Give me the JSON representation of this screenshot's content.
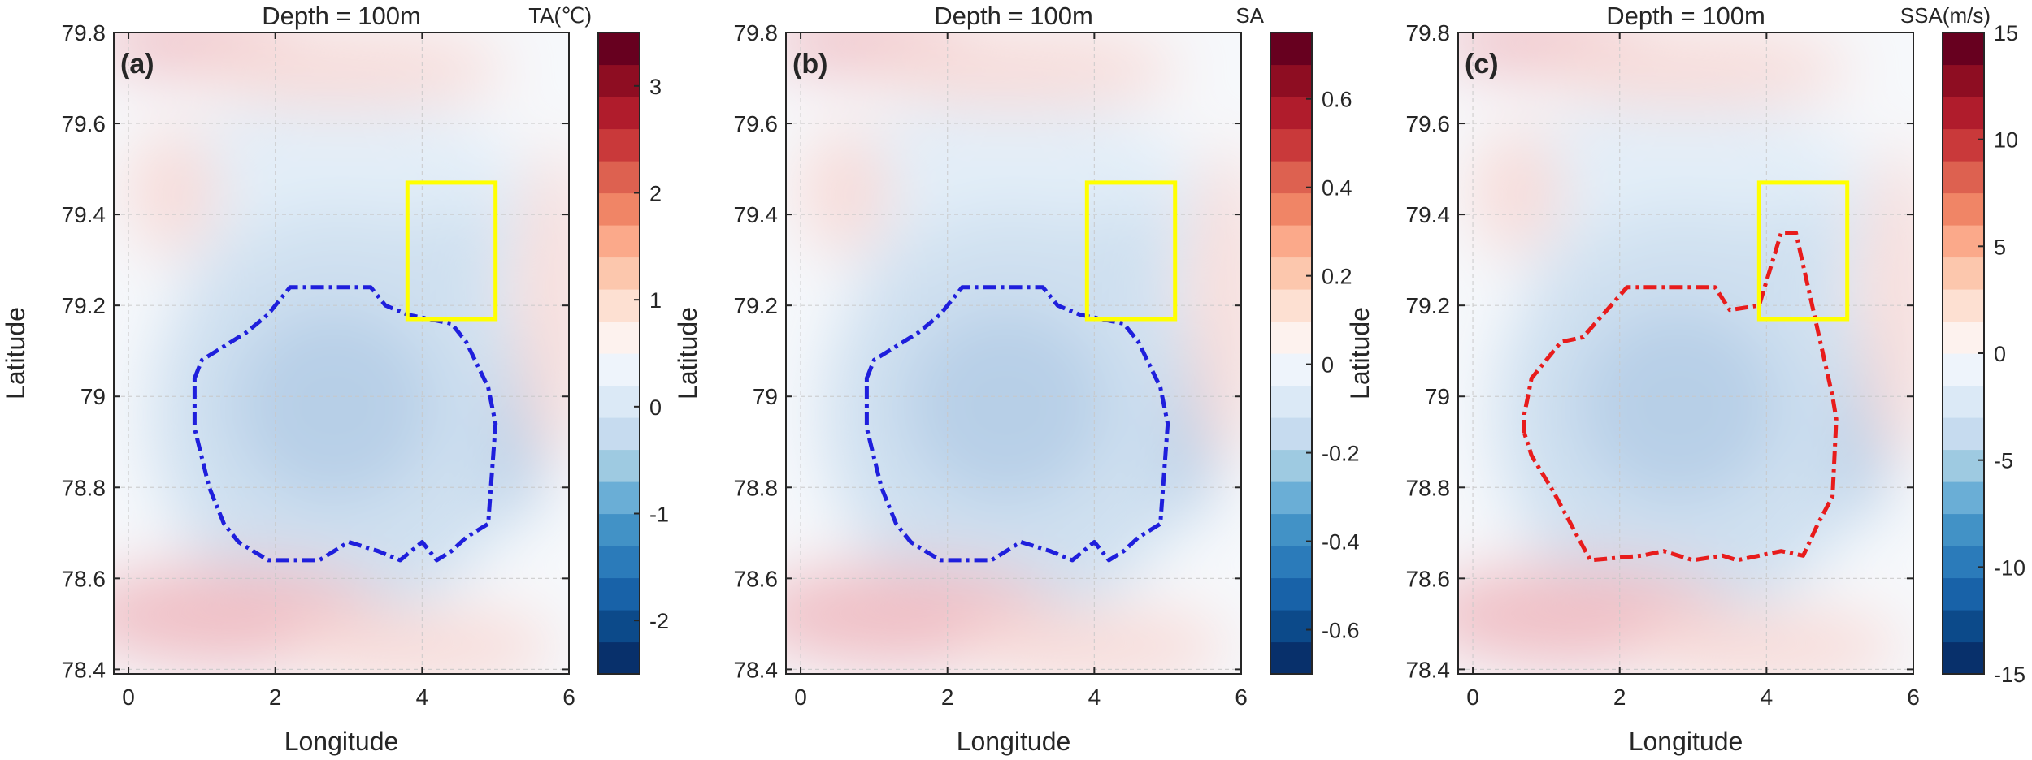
{
  "chart_data": [
    {
      "type": "heatmap",
      "panel_label": "(a)",
      "title": "Depth = 100m",
      "xlabel": "Longitude",
      "ylabel": "Latitude",
      "xlim": [
        -0.2,
        6
      ],
      "ylim": [
        78.39,
        79.8
      ],
      "xticks": [
        "0",
        "2",
        "4",
        "6"
      ],
      "yticks": [
        "78.4",
        "78.6",
        "78.8",
        "79",
        "79.2",
        "79.4",
        "79.6",
        "79.8"
      ],
      "grid": true,
      "colorbar": {
        "label": "TA(℃)",
        "range": [
          -2.5,
          3.5
        ],
        "ticks": [
          "-2",
          "-1",
          "0",
          "1",
          "2",
          "3"
        ],
        "tick_values": [
          -2,
          -1,
          0,
          1,
          2,
          3
        ]
      },
      "contour_color": "#1f1fdc",
      "contour": [
        [
          0.9,
          79.04
        ],
        [
          1.0,
          79.08
        ],
        [
          1.2,
          79.1
        ],
        [
          1.5,
          79.13
        ],
        [
          1.6,
          79.14
        ],
        [
          1.9,
          79.18
        ],
        [
          2.2,
          79.24
        ],
        [
          3.3,
          79.24
        ],
        [
          3.5,
          79.2
        ],
        [
          3.8,
          79.18
        ],
        [
          4.4,
          79.16
        ],
        [
          4.6,
          79.12
        ],
        [
          4.9,
          79.02
        ],
        [
          5.0,
          78.94
        ],
        [
          4.9,
          78.72
        ],
        [
          4.6,
          78.69
        ],
        [
          4.4,
          78.66
        ],
        [
          4.2,
          78.64
        ],
        [
          4.0,
          78.68
        ],
        [
          3.7,
          78.64
        ],
        [
          3.4,
          78.66
        ],
        [
          3.0,
          78.68
        ],
        [
          2.7,
          78.65
        ],
        [
          2.6,
          78.64
        ],
        [
          1.9,
          78.64
        ],
        [
          1.5,
          78.68
        ],
        [
          1.3,
          78.72
        ],
        [
          1.1,
          78.8
        ],
        [
          0.9,
          78.93
        ],
        [
          0.9,
          79.04
        ]
      ],
      "box": {
        "x": [
          3.8,
          5.0
        ],
        "y": [
          79.17,
          79.47
        ],
        "color": "#ffff00"
      }
    },
    {
      "type": "heatmap",
      "panel_label": "(b)",
      "title": "Depth = 100m",
      "xlabel": "Longitude",
      "ylabel": "Latitude",
      "xlim": [
        -0.2,
        6
      ],
      "ylim": [
        78.39,
        79.8
      ],
      "xticks": [
        "0",
        "2",
        "4",
        "6"
      ],
      "yticks": [
        "78.4",
        "78.6",
        "78.8",
        "79",
        "79.2",
        "79.4",
        "79.6",
        "79.8"
      ],
      "grid": true,
      "colorbar": {
        "label": "SA",
        "range": [
          -0.7,
          0.75
        ],
        "ticks": [
          "-0.6",
          "-0.4",
          "-0.2",
          "0",
          "0.2",
          "0.4",
          "0.6"
        ],
        "tick_values": [
          -0.6,
          -0.4,
          -0.2,
          0,
          0.2,
          0.4,
          0.6
        ]
      },
      "contour_color": "#1f1fdc",
      "contour": [
        [
          0.9,
          79.04
        ],
        [
          1.0,
          79.08
        ],
        [
          1.2,
          79.1
        ],
        [
          1.5,
          79.13
        ],
        [
          1.6,
          79.14
        ],
        [
          1.9,
          79.18
        ],
        [
          2.2,
          79.24
        ],
        [
          3.3,
          79.24
        ],
        [
          3.5,
          79.2
        ],
        [
          3.8,
          79.18
        ],
        [
          4.4,
          79.16
        ],
        [
          4.6,
          79.12
        ],
        [
          4.9,
          79.02
        ],
        [
          5.0,
          78.94
        ],
        [
          4.9,
          78.72
        ],
        [
          4.6,
          78.69
        ],
        [
          4.4,
          78.66
        ],
        [
          4.2,
          78.64
        ],
        [
          4.0,
          78.68
        ],
        [
          3.7,
          78.64
        ],
        [
          3.4,
          78.66
        ],
        [
          3.0,
          78.68
        ],
        [
          2.7,
          78.65
        ],
        [
          2.6,
          78.64
        ],
        [
          1.9,
          78.64
        ],
        [
          1.5,
          78.68
        ],
        [
          1.3,
          78.72
        ],
        [
          1.1,
          78.8
        ],
        [
          0.9,
          78.93
        ],
        [
          0.9,
          79.04
        ]
      ],
      "box": {
        "x": [
          3.9,
          5.1
        ],
        "y": [
          79.17,
          79.47
        ],
        "color": "#ffff00"
      }
    },
    {
      "type": "heatmap",
      "panel_label": "(c)",
      "title": "Depth = 100m",
      "xlabel": "Longitude",
      "ylabel": "Latitude",
      "xlim": [
        -0.2,
        6
      ],
      "ylim": [
        78.39,
        79.8
      ],
      "xticks": [
        "0",
        "2",
        "4",
        "6"
      ],
      "yticks": [
        "78.4",
        "78.6",
        "78.8",
        "79",
        "79.2",
        "79.4",
        "79.6",
        "79.8"
      ],
      "grid": true,
      "colorbar": {
        "label": "SSA(m/s)",
        "range": [
          -15,
          15
        ],
        "ticks": [
          "-15",
          "-10",
          "-5",
          "0",
          "5",
          "10",
          "15"
        ],
        "tick_values": [
          -15,
          -10,
          -5,
          0,
          5,
          10,
          15
        ]
      },
      "contour_color": "#e81c1c",
      "contour": [
        [
          0.7,
          78.92
        ],
        [
          0.7,
          78.96
        ],
        [
          0.8,
          79.04
        ],
        [
          1.2,
          79.12
        ],
        [
          1.5,
          79.13
        ],
        [
          2.1,
          79.24
        ],
        [
          3.3,
          79.24
        ],
        [
          3.5,
          79.19
        ],
        [
          3.9,
          79.2
        ],
        [
          4.2,
          79.36
        ],
        [
          4.4,
          79.36
        ],
        [
          4.9,
          79.0
        ],
        [
          4.95,
          78.95
        ],
        [
          4.9,
          78.78
        ],
        [
          4.7,
          78.72
        ],
        [
          4.5,
          78.65
        ],
        [
          4.2,
          78.66
        ],
        [
          3.9,
          78.65
        ],
        [
          3.6,
          78.64
        ],
        [
          3.4,
          78.65
        ],
        [
          3.0,
          78.64
        ],
        [
          2.6,
          78.66
        ],
        [
          2.3,
          78.65
        ],
        [
          1.6,
          78.64
        ],
        [
          1.4,
          78.7
        ],
        [
          1.1,
          78.79
        ],
        [
          0.8,
          78.87
        ],
        [
          0.7,
          78.92
        ]
      ],
      "box": {
        "x": [
          3.9,
          5.1
        ],
        "y": [
          79.17,
          79.47
        ],
        "color": "#ffff00"
      }
    }
  ]
}
